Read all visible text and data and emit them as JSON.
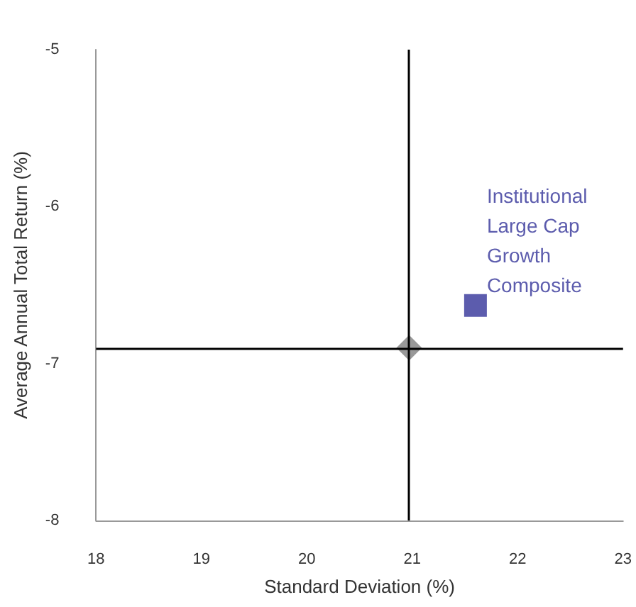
{
  "chart_data": {
    "type": "scatter",
    "xlabel": "Standard Deviation (%)",
    "ylabel": "Average Annual Total Return (%)",
    "series": [
      {
        "name": "Institutional Large Cap Growth Composite",
        "color": "#333399",
        "marker": "square",
        "x": [
          21.6
        ],
        "values": [
          -6.63
        ]
      },
      {
        "color": "#808080",
        "marker": "diamond",
        "x": [
          20.97
        ],
        "values": [
          -6.9
        ]
      }
    ],
    "xlim": [
      18,
      23
    ],
    "xticks": [
      18,
      19,
      20,
      21,
      22,
      23
    ],
    "ylim": [
      -8,
      -5
    ],
    "yticks": [
      -8,
      -7,
      -6,
      -5
    ],
    "ref_lines": [
      {
        "axis": "x",
        "value": 20.97,
        "color": "#000000"
      },
      {
        "axis": "y",
        "value": -6.9,
        "color": "#000000"
      }
    ],
    "grid": false,
    "legend": false
  }
}
